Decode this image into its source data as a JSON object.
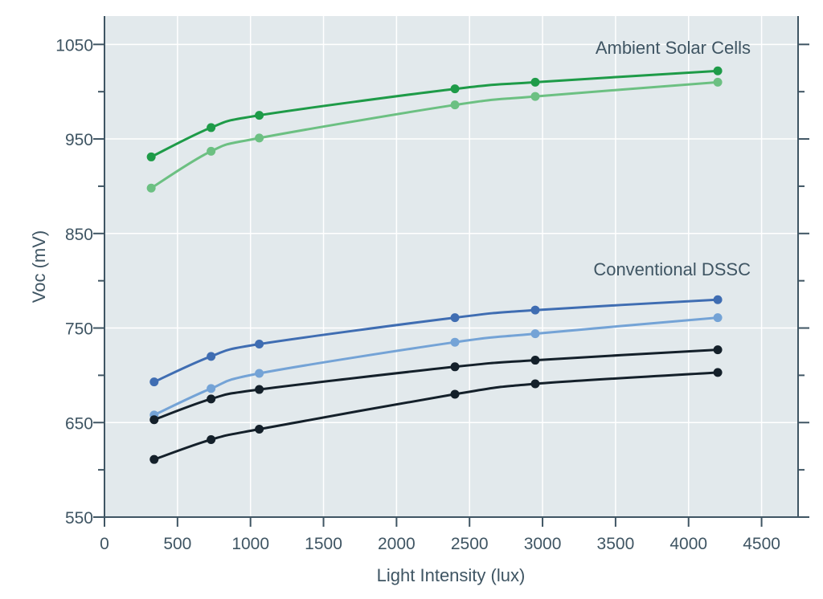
{
  "chart_data": {
    "type": "line",
    "xlabel": "Light Intensity (lux)",
    "ylabel": "Voc (mV)",
    "xlim": [
      0,
      4750
    ],
    "ylim": [
      550,
      1080
    ],
    "x_ticks": [
      0,
      500,
      1000,
      1500,
      2000,
      2500,
      3000,
      3500,
      4000,
      4500
    ],
    "y_ticks": [
      550,
      650,
      750,
      850,
      950,
      1050
    ],
    "grid": true,
    "annotations": [
      {
        "text": "Ambient Solar Cells",
        "x": 4200,
        "y": 1048
      },
      {
        "text": "Conventional DSSC",
        "x": 4200,
        "y": 810
      }
    ],
    "series": [
      {
        "color": "#1e9b48",
        "x": [
          320,
          730,
          1060,
          2400,
          2950,
          4200
        ],
        "y": [
          931,
          962,
          975,
          1003,
          1010,
          1022
        ]
      },
      {
        "color": "#6cc082",
        "x": [
          320,
          730,
          1060,
          2400,
          2950,
          4200
        ],
        "y": [
          898,
          937,
          951,
          986,
          995,
          1010
        ]
      },
      {
        "color": "#3f6db2",
        "x": [
          340,
          730,
          1060,
          2400,
          2950,
          4200
        ],
        "y": [
          693,
          720,
          733,
          761,
          769,
          780
        ]
      },
      {
        "color": "#74a3d6",
        "x": [
          340,
          730,
          1060,
          2400,
          2950,
          4200
        ],
        "y": [
          658,
          686,
          702,
          735,
          744,
          761
        ]
      },
      {
        "color": "#14202a",
        "x": [
          340,
          730,
          1060,
          2400,
          2950,
          4200
        ],
        "y": [
          653,
          675,
          685,
          709,
          716,
          727
        ]
      },
      {
        "color": "#14202a",
        "x": [
          340,
          730,
          1060,
          2400,
          2950,
          4200
        ],
        "y": [
          611,
          632,
          643,
          680,
          691,
          703
        ]
      }
    ]
  }
}
